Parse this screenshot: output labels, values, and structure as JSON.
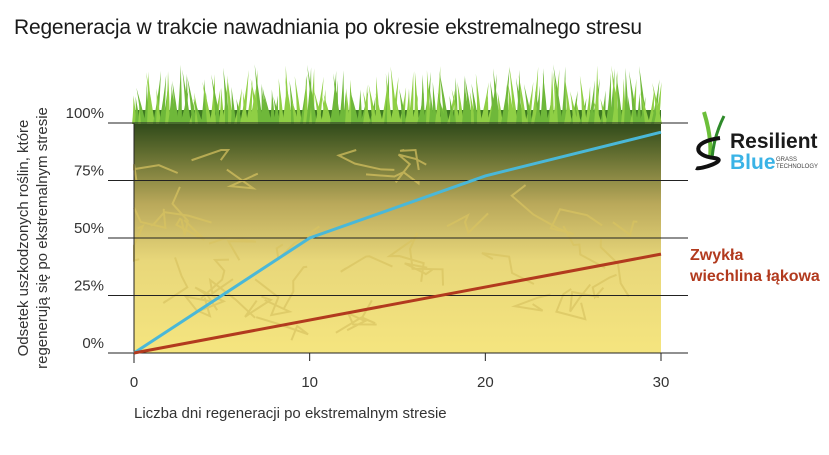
{
  "chart_data": {
    "type": "line",
    "title": "Regeneracja w trakcie nawadniania po okresie ekstremalnego stresu",
    "xlabel": "Liczba dni regeneracji po ekstremalnym stresie",
    "ylabel_lines": [
      "Odsetek uszkodzonych roślin, które",
      "regenerują się po ekstremalnym stresie"
    ],
    "xlim": [
      0,
      30
    ],
    "ylim": [
      0,
      100
    ],
    "x_ticks": [
      0,
      10,
      20,
      30
    ],
    "x_tick_labels": [
      "0",
      "10",
      "20",
      "30"
    ],
    "y_ticks": [
      0,
      25,
      50,
      75,
      100
    ],
    "y_tick_labels": [
      "0%",
      "25%",
      "50%",
      "75%",
      "100%"
    ],
    "grid": "horizontal",
    "series": [
      {
        "name": "Resilient Blue",
        "color": "#4ab8d8",
        "x": [
          0,
          10,
          20,
          30
        ],
        "y": [
          0,
          50,
          77,
          96
        ]
      },
      {
        "name": "Zwykła wiechlina łąkowa",
        "color": "#b23a1e",
        "x": [
          0,
          30
        ],
        "y": [
          0,
          43
        ]
      }
    ]
  },
  "logo": {
    "line1": "Resilient",
    "line2": "Blue",
    "tag1": "GRASS",
    "tag2": "TECHNOLOGY"
  },
  "series_label": {
    "line1": "Zwykła",
    "line2": "wiechlina łąkowa"
  }
}
